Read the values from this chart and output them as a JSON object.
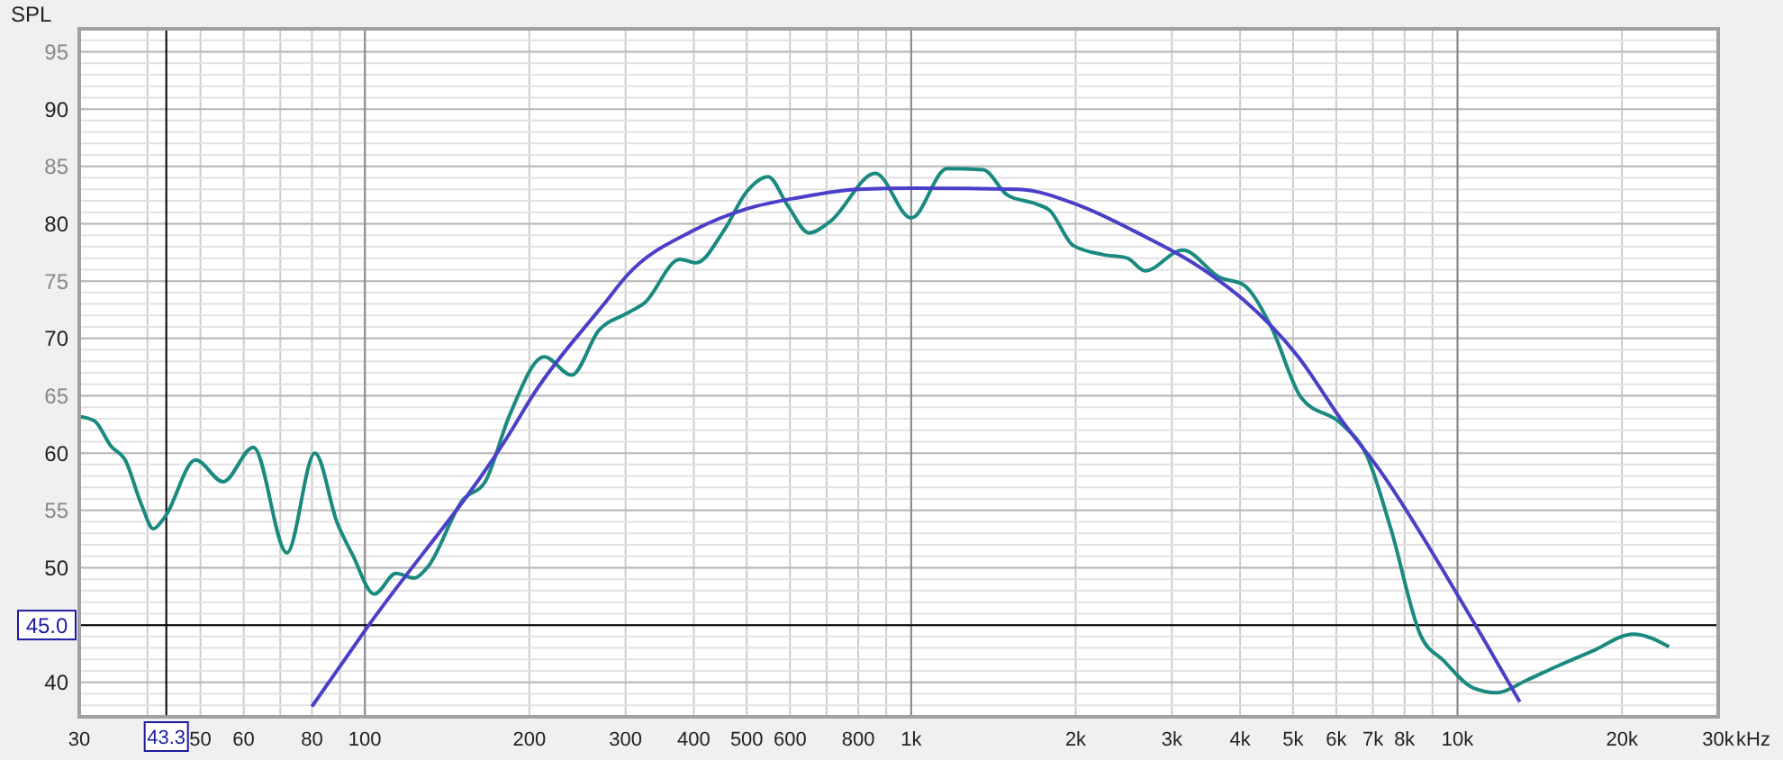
{
  "chart_data": {
    "type": "line",
    "ylabel": "SPL",
    "log": "x",
    "grid": true,
    "xlim": [
      30,
      30000
    ],
    "ylim": [
      37,
      97
    ],
    "xticks": [
      30,
      {
        "value": 40,
        "label": null
      },
      50,
      60,
      80,
      100,
      200,
      300,
      400,
      500,
      600,
      800,
      {
        "value": 1000,
        "label": "1k"
      },
      {
        "value": 2000,
        "label": "2k"
      },
      {
        "value": 3000,
        "label": "3k"
      },
      {
        "value": 4000,
        "label": "4k"
      },
      {
        "value": 5000,
        "label": "5k"
      },
      {
        "value": 6000,
        "label": "6k"
      },
      {
        "value": 7000,
        "label": "7k"
      },
      {
        "value": 8000,
        "label": "8k"
      },
      {
        "value": 10000,
        "label": "10k"
      },
      {
        "value": 20000,
        "label": "20k"
      },
      {
        "value": 30000,
        "label": "30k"
      }
    ],
    "xlabel": "kHz",
    "yticks": [
      40,
      {
        "value": 45,
        "label": null
      },
      50,
      55,
      60,
      65,
      70,
      75,
      80,
      85,
      90,
      95
    ],
    "ref_lines": [
      {
        "axis": "x",
        "value": 43.3,
        "label": "43.3",
        "color": "#000000"
      },
      {
        "axis": "y",
        "value": 45.0,
        "label": "45.0",
        "color": "#000000"
      }
    ],
    "series": [
      {
        "color": "#1a8a80",
        "x": [
          30,
          32,
          34.3,
          36.4,
          39,
          41,
          43,
          49,
          55,
          62.5,
          72,
          81,
          89,
          95,
          104,
          114,
          123,
          130,
          151,
          166,
          184,
          213,
          239,
          268,
          302,
          325,
          377,
          404,
          454,
          500,
          547,
          594,
          650,
          711,
          860,
          1000,
          1163,
          1354,
          1500,
          1700,
          1790,
          1980,
          2250,
          2485,
          2680,
          3140,
          3680,
          4050,
          4550,
          5180,
          6150,
          6820,
          7550,
          8560,
          9430,
          10700,
          11800,
          13400,
          15200,
          17600,
          21000,
          24400
        ],
        "values": [
          63.2,
          62.8,
          60.6,
          59.4,
          55.5,
          53.4,
          54.4,
          59.4,
          57.5,
          60.5,
          51.3,
          60,
          53.9,
          51.1,
          47.7,
          49.5,
          49.1,
          50,
          55.9,
          57.5,
          63.3,
          68.4,
          66.8,
          70.7,
          72.2,
          73.1,
          76.9,
          76.6,
          79.4,
          82.8,
          84.1,
          81.6,
          79.2,
          80.2,
          84.4,
          80.5,
          84.8,
          84.7,
          82.5,
          81.7,
          81.2,
          78.1,
          77.3,
          77,
          75.9,
          77.7,
          75.3,
          74.7,
          71.1,
          64.8,
          62.5,
          59.8,
          53.4,
          44.1,
          41.9,
          39.5,
          39.1,
          40.2,
          41.4,
          42.7,
          44.2,
          43.1
        ]
      },
      {
        "color": "#4b3fc8",
        "x": [
          80,
          101,
          184,
          204,
          274,
          302,
          399,
          500,
          625,
          800,
          1000,
          1570,
          2030,
          2550,
          3550,
          4050,
          5110,
          6150,
          7180,
          10300,
          13000
        ],
        "values": [
          37.9,
          44.8,
          61.7,
          65.2,
          73,
          75.5,
          79.4,
          81.3,
          82.3,
          83,
          83.1,
          83,
          81.6,
          79.4,
          75.5,
          73.4,
          68.4,
          62.8,
          58.6,
          46.6,
          38.3
        ]
      }
    ]
  }
}
